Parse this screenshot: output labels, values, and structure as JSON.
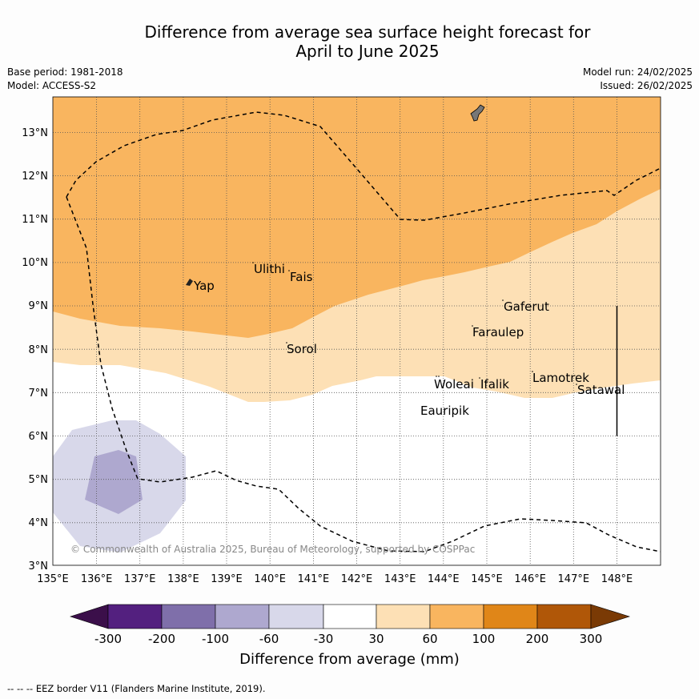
{
  "title": {
    "line1": "Difference from average sea surface height forecast for",
    "line2": "April to June 2025"
  },
  "meta": {
    "base_period": "Base period: 1981-2018",
    "model": "Model: ACCESS-S2",
    "model_run": "Model run: 24/02/2025",
    "issued": "Issued: 26/02/2025"
  },
  "map": {
    "lon_range": [
      135,
      149
    ],
    "lat_range": [
      3,
      13.8
    ],
    "x_ticks": [
      "135°E",
      "136°E",
      "137°E",
      "138°E",
      "139°E",
      "140°E",
      "141°E",
      "142°E",
      "143°E",
      "144°E",
      "145°E",
      "146°E",
      "147°E",
      "148°E"
    ],
    "y_ticks": [
      "3°N",
      "4°N",
      "5°N",
      "6°N",
      "7°N",
      "8°N",
      "9°N",
      "10°N",
      "11°N",
      "12°N",
      "13°N"
    ],
    "copyright": "© Commonwealth of Australia 2025, Bureau of Meteorology, supported by COSPPac",
    "places": [
      {
        "name": "Yap",
        "lon": 138.25,
        "lat": 9.45
      },
      {
        "name": "Ulithi",
        "lon": 139.65,
        "lat": 9.8
      },
      {
        "name": "Fais",
        "lon": 140.5,
        "lat": 9.62
      },
      {
        "name": "Gaferut",
        "lon": 145.35,
        "lat": 8.9
      },
      {
        "name": "Faraulep",
        "lon": 144.55,
        "lat": 8.3
      },
      {
        "name": "Sorol",
        "lon": 140.35,
        "lat": 8.0
      },
      {
        "name": "Lamotrek",
        "lon": 146.05,
        "lat": 7.3
      },
      {
        "name": "Woleai",
        "lon": 143.75,
        "lat": 7.1
      },
      {
        "name": "Ifalik",
        "lon": 144.65,
        "lat": 7.1
      },
      {
        "name": "Satawal",
        "lon": 147.05,
        "lat": 7.0
      },
      {
        "name": "Eauripik",
        "lon": 143.3,
        "lat": 6.45
      }
    ]
  },
  "colorbar": {
    "tick_labels": [
      "-300",
      "-200",
      "-100",
      "-60",
      "-30",
      "30",
      "60",
      "100",
      "200",
      "300"
    ],
    "colors": [
      "#3b0f4a",
      "#53207f",
      "#7f6faa",
      "#aea8cf",
      "#d8d8ea",
      "#ffffff",
      "#fde0b5",
      "#f9b55f",
      "#e08618",
      "#b05708",
      "#7a3a05"
    ],
    "label": "Difference from average (mm)"
  },
  "footnote": "--  --  -- EEZ border V11 (Flanders Marine Institute, 2019)."
}
